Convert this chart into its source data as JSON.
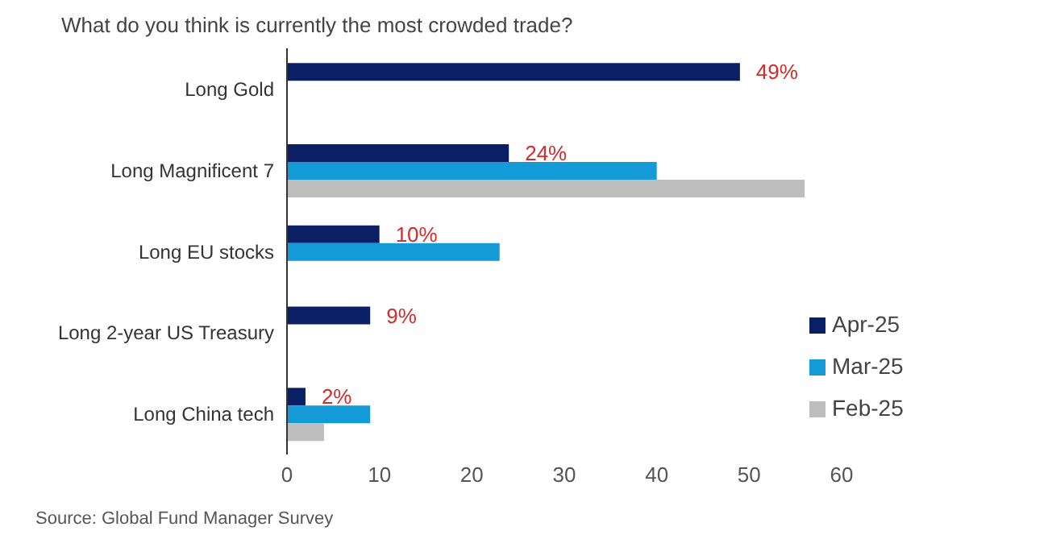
{
  "chart_data": {
    "type": "bar",
    "orientation": "horizontal",
    "title": "What do you think is currently the most crowded trade?",
    "categories": [
      "Long Gold",
      "Long Magnificent 7",
      "Long EU stocks",
      "Long 2-year US Treasury",
      "Long China tech"
    ],
    "series": [
      {
        "name": "Apr-25",
        "color": "#0b1f65",
        "values": [
          49,
          24,
          10,
          9,
          2
        ],
        "value_labels": [
          "49%",
          "24%",
          "10%",
          "9%",
          "2%"
        ]
      },
      {
        "name": "Mar-25",
        "color": "#149bd7",
        "values": [
          null,
          40,
          23,
          null,
          9
        ]
      },
      {
        "name": "Feb-25",
        "color": "#bdbdbd",
        "values": [
          null,
          56,
          null,
          null,
          4
        ]
      }
    ],
    "xlim": [
      0,
      60
    ],
    "xticks": [
      0,
      10,
      20,
      30,
      40,
      50,
      60
    ],
    "legend": "bottom right",
    "annotations": [
      "Source: Global Fund Manager Survey"
    ]
  }
}
